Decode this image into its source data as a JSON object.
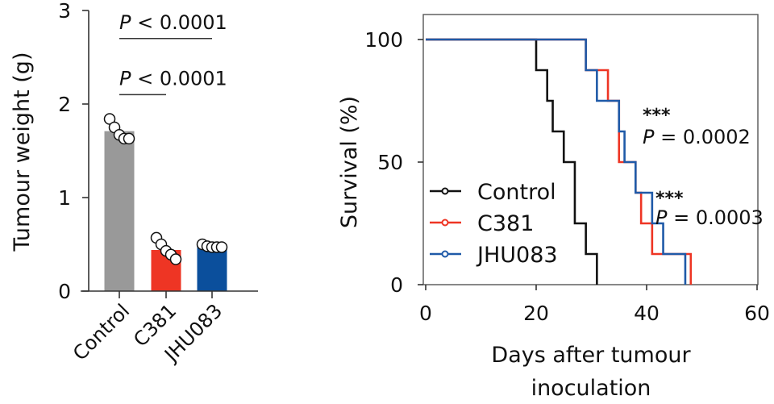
{
  "chart_data": [
    {
      "type": "bar",
      "title": "",
      "xlabel": "",
      "ylabel": "Tumour weight (g)",
      "ylim": [
        0,
        3
      ],
      "yticks": [
        0,
        1,
        2,
        3
      ],
      "ytick_labels": [
        "0",
        "1",
        "2",
        "3"
      ],
      "categories": [
        "Control",
        "C381",
        "JHU083"
      ],
      "values": [
        1.71,
        0.44,
        0.48
      ],
      "colors": [
        "#999999",
        "#ee3524",
        "#0b4f9c"
      ],
      "points": [
        [
          1.84,
          1.75,
          1.67,
          1.63,
          1.63
        ],
        [
          0.57,
          0.5,
          0.43,
          0.39,
          0.34
        ],
        [
          0.5,
          0.48,
          0.47,
          0.47,
          0.47
        ]
      ],
      "annotations": [
        {
          "text_p": "P",
          "text_rest": " < 0.0001",
          "from": "Control",
          "to": "JHU083",
          "level": 2.7
        },
        {
          "text_p": "P",
          "text_rest": " < 0.0001",
          "from": "Control",
          "to": "C381",
          "level": 2.1
        }
      ]
    },
    {
      "type": "line",
      "subtype": "kaplan-meier step",
      "title": "",
      "xlabel_lines": [
        "Days after tumour",
        "inoculation"
      ],
      "ylabel": "Survival (%)",
      "xlim": [
        0,
        60
      ],
      "ylim": [
        0,
        110
      ],
      "xticks": [
        0,
        20,
        40,
        60
      ],
      "xtick_labels": [
        "0",
        "20",
        "40",
        "60"
      ],
      "yticks": [
        0,
        50,
        100
      ],
      "ytick_labels": [
        "0",
        "50",
        "100"
      ],
      "legend_position": "bottom-left",
      "series": [
        {
          "name": "Control",
          "color": "#111111",
          "x": [
            0,
            20,
            22,
            23,
            25,
            27,
            29,
            31
          ],
          "y": [
            100,
            87.5,
            75,
            62.5,
            50,
            25,
            12.5,
            0
          ]
        },
        {
          "name": "C381",
          "color": "#ee3524",
          "x": [
            0,
            29,
            33,
            35,
            38,
            39,
            41,
            48
          ],
          "y": [
            100,
            87.5,
            75,
            50,
            37.5,
            25,
            12.5,
            0
          ]
        },
        {
          "name": "JHU083",
          "color": "#1f5aa8",
          "x": [
            0,
            29,
            31,
            35,
            36,
            38,
            41,
            43,
            47
          ],
          "y": [
            100,
            87.5,
            75,
            62.5,
            50,
            37.5,
            25,
            12.5,
            0
          ]
        }
      ],
      "annotations": [
        {
          "stars": "***",
          "text_p": "P",
          "text_rest": " = 0.0002",
          "x": 40,
          "y": 64
        },
        {
          "stars": "***",
          "text_p": "P",
          "text_rest": " = 0.0003",
          "x": 42,
          "y": 31
        }
      ]
    }
  ]
}
